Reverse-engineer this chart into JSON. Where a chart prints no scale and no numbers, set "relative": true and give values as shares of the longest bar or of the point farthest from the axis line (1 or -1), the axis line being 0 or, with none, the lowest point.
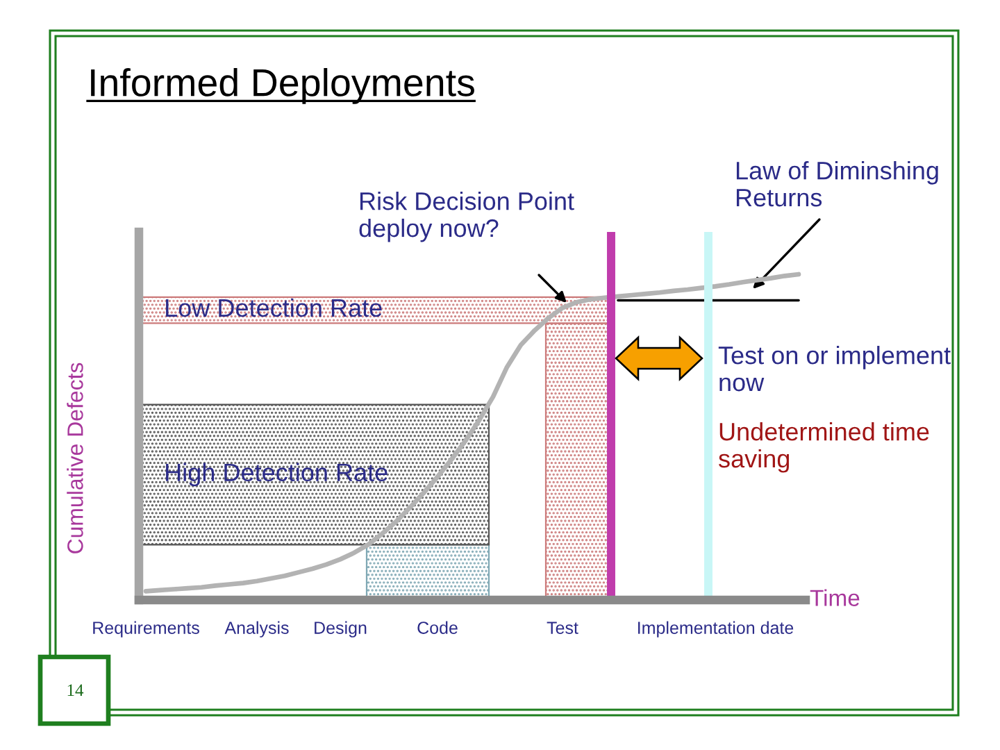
{
  "chart_data": {
    "type": "line",
    "title": "Informed Deployments",
    "xlabel": "Time",
    "ylabel": "Cumulative Defects",
    "relative": true,
    "categories": [
      "Requirements",
      null,
      null,
      null,
      null,
      null,
      null,
      null,
      "Analysis",
      null,
      null,
      null,
      null,
      null,
      "Design",
      null,
      null,
      null,
      null,
      null,
      null,
      "Code",
      null,
      null,
      null,
      null,
      null,
      null,
      null,
      null,
      "Test",
      null,
      null,
      null,
      null,
      null,
      null,
      null,
      null,
      null,
      null,
      "Implementation date",
      null,
      null,
      null,
      null,
      null,
      null
    ],
    "series": [
      {
        "color": "#b3b3b3",
        "values": [
          0.027,
          0.03,
          0.033,
          0.036,
          0.039,
          0.044,
          0.048,
          0.052,
          0.058,
          0.066,
          0.074,
          0.085,
          0.096,
          0.109,
          0.125,
          0.145,
          0.17,
          0.203,
          0.24,
          0.283,
          0.329,
          0.378,
          0.431,
          0.488,
          0.552,
          0.624,
          0.715,
          0.783,
          0.828,
          0.866,
          0.897,
          0.914,
          0.923,
          0.928,
          0.932,
          0.936,
          0.94,
          0.944,
          0.949,
          0.953,
          0.958,
          0.963,
          0.969,
          0.976,
          0.982,
          0.988,
          0.995,
          1
        ]
      },
      {
        "color": "#000000",
        "values": [
          null,
          null,
          null,
          null,
          null,
          null,
          null,
          null,
          null,
          null,
          null,
          null,
          null,
          null,
          null,
          null,
          null,
          null,
          null,
          null,
          null,
          null,
          null,
          null,
          null,
          null,
          null,
          null,
          null,
          null,
          null,
          null,
          null,
          null,
          0.92,
          0.92,
          0.92,
          0.92,
          0.92,
          0.92,
          0.92,
          0.92,
          0.92,
          0.92,
          0.92,
          0.92,
          0.92,
          0.92
        ]
      }
    ],
    "bands": [
      {
        "axis": "y",
        "from": 0.85,
        "to": 0.93,
        "label": "Low Detection Rate",
        "color": "#cc7a7a"
      },
      {
        "axis": "y",
        "from": 0.17,
        "to": 0.6,
        "label": "High Detection Rate",
        "color": "#555555"
      }
    ],
    "annotations": [
      "Risk Decision Point\ndeploy now?",
      "Law of Diminshing\nReturns",
      "Test on or implement\nnow",
      "Undetermined time\nsaving",
      "14"
    ]
  }
}
